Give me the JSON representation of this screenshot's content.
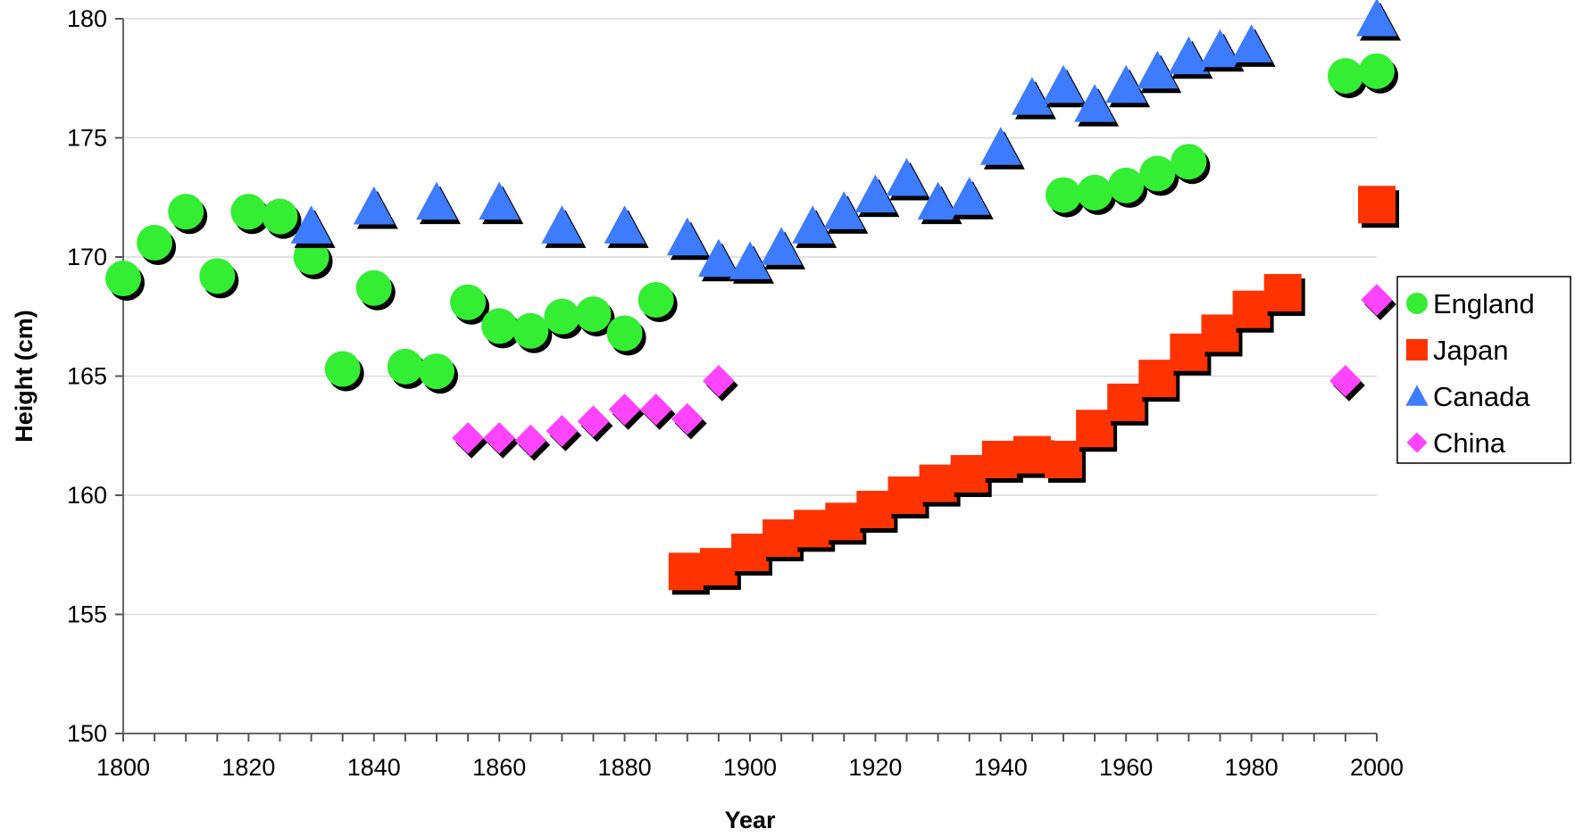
{
  "chart_data": {
    "type": "scatter",
    "title": "",
    "xlabel": "Year",
    "ylabel": "Height (cm)",
    "xlim": [
      1800,
      2000
    ],
    "ylim": [
      150,
      180
    ],
    "x_ticks": [
      "1800",
      "1820",
      "1840",
      "1860",
      "1880",
      "1900",
      "1920",
      "1940",
      "1960",
      "1980",
      "2000"
    ],
    "y_ticks": [
      "150",
      "155",
      "160",
      "165",
      "170",
      "175",
      "180"
    ],
    "grid": "horizontal",
    "legend_position": "right",
    "series": [
      {
        "name": "England",
        "marker": "circle",
        "color": "#33ee33",
        "points": [
          [
            1800,
            169.1
          ],
          [
            1805,
            170.6
          ],
          [
            1810,
            171.9
          ],
          [
            1815,
            169.2
          ],
          [
            1820,
            171.9
          ],
          [
            1825,
            171.7
          ],
          [
            1830,
            170.0
          ],
          [
            1835,
            165.3
          ],
          [
            1840,
            168.7
          ],
          [
            1845,
            165.4
          ],
          [
            1850,
            165.2
          ],
          [
            1855,
            168.1
          ],
          [
            1860,
            167.1
          ],
          [
            1865,
            166.9
          ],
          [
            1870,
            167.5
          ],
          [
            1875,
            167.6
          ],
          [
            1880,
            166.8
          ],
          [
            1885,
            168.2
          ],
          [
            1950,
            172.6
          ],
          [
            1955,
            172.7
          ],
          [
            1960,
            173.0
          ],
          [
            1965,
            173.5
          ],
          [
            1970,
            174.0
          ],
          [
            1995,
            177.6
          ],
          [
            2000,
            177.8
          ]
        ]
      },
      {
        "name": "Japan",
        "marker": "square",
        "color": "#ff3300",
        "points": [
          [
            1890,
            156.8
          ],
          [
            1895,
            157.0
          ],
          [
            1900,
            157.6
          ],
          [
            1905,
            158.2
          ],
          [
            1910,
            158.6
          ],
          [
            1915,
            158.9
          ],
          [
            1920,
            159.4
          ],
          [
            1925,
            160.0
          ],
          [
            1930,
            160.5
          ],
          [
            1935,
            160.9
          ],
          [
            1940,
            161.5
          ],
          [
            1945,
            161.7
          ],
          [
            1950,
            161.5
          ],
          [
            1955,
            162.8
          ],
          [
            1960,
            163.9
          ],
          [
            1965,
            164.9
          ],
          [
            1970,
            166.0
          ],
          [
            1975,
            166.8
          ],
          [
            1980,
            167.8
          ],
          [
            1985,
            168.5
          ],
          [
            2000,
            172.2
          ]
        ]
      },
      {
        "name": "Canada",
        "marker": "triangle",
        "color": "#3d7bff",
        "points": [
          [
            1830,
            171.3
          ],
          [
            1840,
            172.1
          ],
          [
            1850,
            172.3
          ],
          [
            1860,
            172.3
          ],
          [
            1870,
            171.3
          ],
          [
            1880,
            171.3
          ],
          [
            1890,
            170.8
          ],
          [
            1895,
            169.9
          ],
          [
            1900,
            169.8
          ],
          [
            1905,
            170.4
          ],
          [
            1910,
            171.3
          ],
          [
            1915,
            171.9
          ],
          [
            1920,
            172.6
          ],
          [
            1925,
            173.3
          ],
          [
            1930,
            172.3
          ],
          [
            1935,
            172.5
          ],
          [
            1940,
            174.6
          ],
          [
            1945,
            176.7
          ],
          [
            1950,
            177.2
          ],
          [
            1955,
            176.4
          ],
          [
            1960,
            177.2
          ],
          [
            1965,
            177.8
          ],
          [
            1970,
            178.4
          ],
          [
            1975,
            178.7
          ],
          [
            1980,
            178.9
          ],
          [
            2000,
            180.0
          ]
        ]
      },
      {
        "name": "China",
        "marker": "diamond",
        "color": "#ff44ff",
        "points": [
          [
            1855,
            162.4
          ],
          [
            1860,
            162.4
          ],
          [
            1865,
            162.3
          ],
          [
            1870,
            162.7
          ],
          [
            1875,
            163.1
          ],
          [
            1880,
            163.6
          ],
          [
            1885,
            163.6
          ],
          [
            1890,
            163.2
          ],
          [
            1895,
            164.8
          ],
          [
            1995,
            164.8
          ],
          [
            2000,
            168.2
          ]
        ]
      }
    ]
  }
}
